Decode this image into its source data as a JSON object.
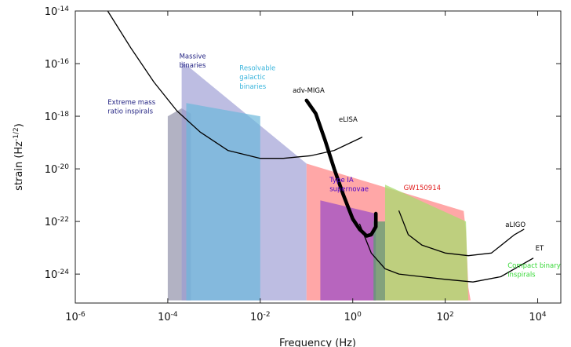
{
  "chart_data": {
    "type": "area",
    "title": "",
    "xlabel": "Frequency (Hz)",
    "ylabel": "strain (Hz",
    "ylabel_sup": "-1/2",
    "ylabel_close": ")",
    "x_scale": "log",
    "y_scale": "log",
    "xlim_exp": [
      -6,
      4.5
    ],
    "ylim_exp": [
      -25.1,
      -14
    ],
    "x_ticks": [
      {
        "base": "10",
        "exp": "-6",
        "value": -6
      },
      {
        "base": "10",
        "exp": "-4",
        "value": -4
      },
      {
        "base": "10",
        "exp": "-2",
        "value": -2
      },
      {
        "base": "10",
        "exp": "0",
        "value": 0
      },
      {
        "base": "10",
        "exp": "2",
        "value": 2
      },
      {
        "base": "10",
        "exp": "4",
        "value": 4
      }
    ],
    "y_ticks": [
      {
        "base": "10",
        "exp": "-14",
        "value": -14
      },
      {
        "base": "10",
        "exp": "-16",
        "value": -16
      },
      {
        "base": "10",
        "exp": "-18",
        "value": -18
      },
      {
        "base": "10",
        "exp": "-20",
        "value": -20
      },
      {
        "base": "10",
        "exp": "-22",
        "value": -22
      },
      {
        "base": "10",
        "exp": "-24",
        "value": -24
      }
    ],
    "source_regions": [
      {
        "id": "extreme-mass",
        "color": "#a4a4b8",
        "opacity": 0.85,
        "points": [
          [
            -4.0,
            -25.0
          ],
          [
            -4.0,
            -18.0
          ],
          [
            -3.7,
            -17.7
          ],
          [
            -3.5,
            -17.9
          ],
          [
            -3.5,
            -25.0
          ]
        ]
      },
      {
        "id": "massive-binaries",
        "color": "#9a9ad2",
        "opacity": 0.65,
        "points": [
          [
            -3.7,
            -25.0
          ],
          [
            -3.7,
            -15.9
          ],
          [
            -1.0,
            -19.8
          ],
          [
            -1.0,
            -25.0
          ]
        ]
      },
      {
        "id": "resolvable-galactic",
        "color": "#6cb8dc",
        "opacity": 0.7,
        "points": [
          [
            -3.6,
            -25.0
          ],
          [
            -3.6,
            -17.5
          ],
          [
            -2.0,
            -18.0
          ],
          [
            -2.0,
            -25.0
          ]
        ]
      },
      {
        "id": "gw150914",
        "color": "#ff8a8a",
        "opacity": 0.75,
        "points": [
          [
            -1.0,
            -25.0
          ],
          [
            -1.0,
            -19.8
          ],
          [
            2.4,
            -21.6
          ],
          [
            2.45,
            -22.4
          ],
          [
            2.5,
            -24.5
          ],
          [
            2.55,
            -25.0
          ]
        ]
      },
      {
        "id": "type-ia",
        "color": "#7b2fd1",
        "opacity": 0.55,
        "points": [
          [
            -0.7,
            -25.0
          ],
          [
            -0.7,
            -21.2
          ],
          [
            0.5,
            -21.7
          ],
          [
            0.5,
            -25.0
          ]
        ]
      },
      {
        "id": "compact-binary",
        "color": "#a8dc70",
        "opacity": 0.75,
        "points": [
          [
            0.7,
            -25.0
          ],
          [
            0.7,
            -20.6
          ],
          [
            2.45,
            -22.0
          ],
          [
            2.5,
            -25.0
          ]
        ]
      },
      {
        "id": "green-strip",
        "color": "#5aa06e",
        "opacity": 0.75,
        "points": [
          [
            0.45,
            -25.0
          ],
          [
            0.45,
            -22.0
          ],
          [
            0.7,
            -22.0
          ],
          [
            0.7,
            -25.0
          ]
        ]
      }
    ],
    "series": [
      {
        "name": "adv-MIGA",
        "stroke": "#000000",
        "width": 4.6,
        "points": [
          [
            -1.0,
            -17.4
          ],
          [
            -0.8,
            -17.9
          ],
          [
            -0.6,
            -18.9
          ],
          [
            -0.4,
            -20.0
          ],
          [
            -0.2,
            -21.0
          ],
          [
            0.0,
            -21.9
          ],
          [
            0.15,
            -22.3
          ],
          [
            0.3,
            -22.55
          ],
          [
            0.4,
            -22.5
          ],
          [
            0.5,
            -22.2
          ],
          [
            0.5,
            -21.7
          ]
        ]
      },
      {
        "name": "eLISA",
        "stroke": "#000000",
        "width": 1.3,
        "points": [
          [
            -5.3,
            -14.0
          ],
          [
            -4.8,
            -15.4
          ],
          [
            -4.3,
            -16.7
          ],
          [
            -3.8,
            -17.8
          ],
          [
            -3.3,
            -18.6
          ],
          [
            -2.7,
            -19.3
          ],
          [
            -2.0,
            -19.6
          ],
          [
            -1.5,
            -19.6
          ],
          [
            -0.9,
            -19.5
          ],
          [
            -0.4,
            -19.3
          ],
          [
            0.2,
            -18.8
          ]
        ]
      },
      {
        "name": "aLIGO",
        "stroke": "#000000",
        "width": 1.3,
        "points": [
          [
            1.0,
            -21.6
          ],
          [
            1.2,
            -22.5
          ],
          [
            1.5,
            -22.9
          ],
          [
            2.0,
            -23.2
          ],
          [
            2.5,
            -23.3
          ],
          [
            3.0,
            -23.2
          ],
          [
            3.5,
            -22.5
          ],
          [
            3.7,
            -22.3
          ]
        ]
      },
      {
        "name": "ET",
        "stroke": "#000000",
        "width": 1.3,
        "points": [
          [
            0.15,
            -22.1
          ],
          [
            0.4,
            -23.2
          ],
          [
            0.7,
            -23.8
          ],
          [
            1.0,
            -24.0
          ],
          [
            1.5,
            -24.1
          ],
          [
            2.0,
            -24.2
          ],
          [
            2.6,
            -24.3
          ],
          [
            3.2,
            -24.1
          ],
          [
            3.6,
            -23.7
          ],
          [
            3.9,
            -23.4
          ]
        ]
      }
    ],
    "annotations": [
      {
        "text": "Massive",
        "color": "#1f1f80",
        "at": [
          -3.75,
          -15.8
        ]
      },
      {
        "text": "binaries",
        "color": "#1f1f80",
        "at": [
          -3.75,
          -16.15
        ]
      },
      {
        "text": "Resolvable",
        "color": "#38b4dc",
        "at": [
          -2.45,
          -16.25
        ]
      },
      {
        "text": "galactic",
        "color": "#38b4dc",
        "at": [
          -2.45,
          -16.6
        ]
      },
      {
        "text": "binaries",
        "color": "#38b4dc",
        "at": [
          -2.45,
          -16.95
        ]
      },
      {
        "text": "Extreme mass",
        "color": "#1f1f80",
        "at": [
          -5.3,
          -17.55
        ]
      },
      {
        "text": "ratio inspirals",
        "color": "#1f1f80",
        "at": [
          -5.3,
          -17.9
        ]
      },
      {
        "text": "adv-MIGA",
        "color": "#000000",
        "at": [
          -1.3,
          -17.1
        ]
      },
      {
        "text": "eLISA",
        "color": "#000000",
        "at": [
          -0.3,
          -18.2
        ]
      },
      {
        "text": "Type IA",
        "color": "#4a00c8",
        "at": [
          -0.5,
          -20.5
        ]
      },
      {
        "text": "supernovae",
        "color": "#4a00c8",
        "at": [
          -0.5,
          -20.85
        ]
      },
      {
        "text": "GW150914",
        "color": "#e01a1a",
        "at": [
          1.1,
          -20.8
        ]
      },
      {
        "text": "aLIGO",
        "color": "#000000",
        "at": [
          3.3,
          -22.2
        ]
      },
      {
        "text": "ET",
        "color": "#000000",
        "at": [
          3.95,
          -23.1
        ]
      },
      {
        "text": "Compact binary",
        "color": "#36d836",
        "at": [
          3.35,
          -23.75
        ]
      },
      {
        "text": "inspirals",
        "color": "#36d836",
        "at": [
          3.35,
          -24.1
        ]
      }
    ]
  }
}
